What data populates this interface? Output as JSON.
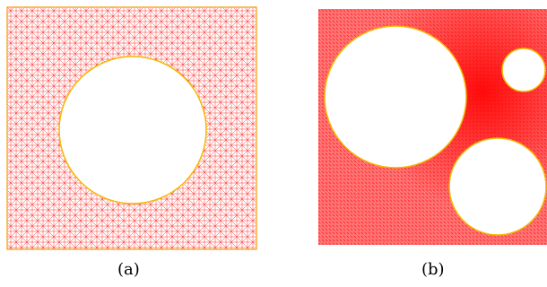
{
  "panels": [
    {
      "id": "a",
      "caption": "(a)"
    },
    {
      "id": "b",
      "caption": "(b)"
    }
  ],
  "colors": {
    "mesh": "#ff2a2a",
    "mesh_dense": "#ff0000",
    "boundary": "#f5b800",
    "hole": "#ffffff"
  }
}
